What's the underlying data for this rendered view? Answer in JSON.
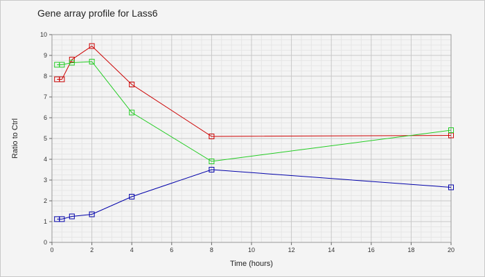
{
  "chart_data": {
    "type": "line",
    "title": "Gene array profile for Lass6",
    "xlabel": "Time (hours)",
    "ylabel": "Ratio to Ctrl",
    "xlim": [
      0,
      20
    ],
    "ylim": [
      0,
      10
    ],
    "x_ticks": [
      0,
      2,
      4,
      6,
      8,
      10,
      12,
      14,
      16,
      18,
      20
    ],
    "y_ticks": [
      0,
      1,
      2,
      3,
      4,
      5,
      6,
      7,
      8,
      9,
      10
    ],
    "grid": true,
    "marker": "square",
    "series": [
      {
        "color": "#cc0000",
        "x": [
          0.25,
          0.5,
          1,
          2,
          4,
          8,
          20
        ],
        "y": [
          7.85,
          7.85,
          8.8,
          9.45,
          7.6,
          5.1,
          5.15
        ]
      },
      {
        "color": "#22cc22",
        "x": [
          0.25,
          0.5,
          1,
          2,
          4,
          8,
          20
        ],
        "y": [
          8.55,
          8.55,
          8.65,
          8.7,
          6.25,
          3.9,
          5.4
        ]
      },
      {
        "color": "#0000aa",
        "x": [
          0.25,
          0.5,
          1,
          2,
          4,
          8,
          20
        ],
        "y": [
          1.12,
          1.12,
          1.25,
          1.35,
          2.2,
          3.5,
          2.65
        ]
      }
    ]
  }
}
